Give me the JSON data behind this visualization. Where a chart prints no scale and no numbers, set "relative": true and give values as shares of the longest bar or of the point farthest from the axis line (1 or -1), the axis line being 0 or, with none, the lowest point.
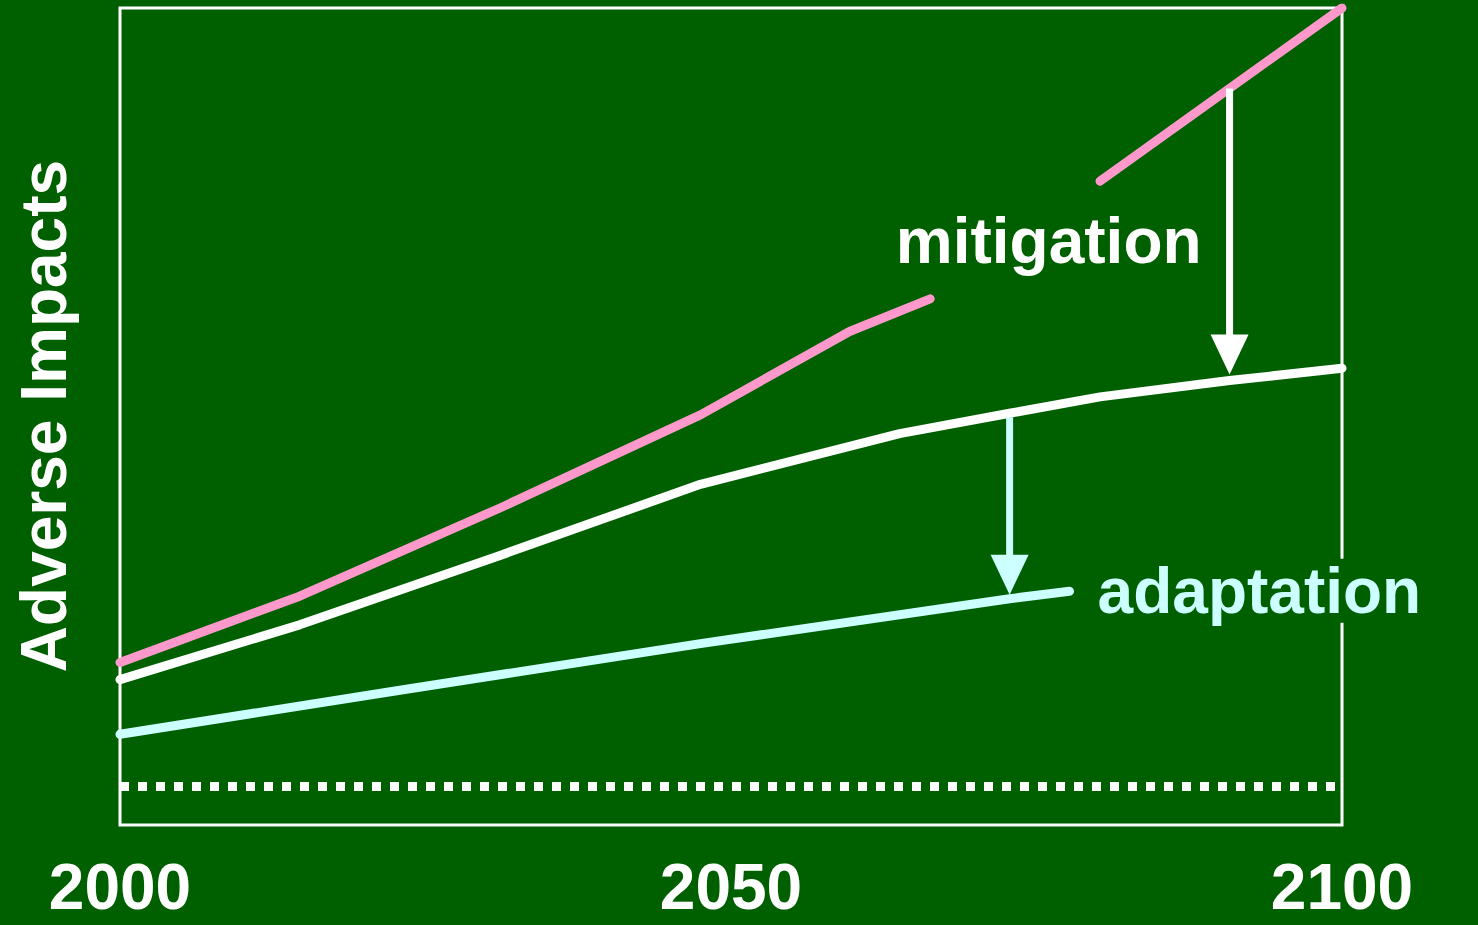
{
  "chart_data": {
    "type": "line",
    "relative": true,
    "ylabel": "Adverse Impacts",
    "xlim": [
      2000,
      2100
    ],
    "xticks": [
      2000,
      2050,
      2100
    ],
    "grid": false,
    "marker": "none",
    "annotations": [
      "mitigation",
      "adaptation"
    ],
    "series": [
      {
        "color": "#ff99cc",
        "x": [
          2000,
          2014.7,
          2031.1,
          2047.5,
          2059.7,
          2066.3,
          2073,
          2080.2,
          2090,
          2100
        ],
        "values": [
          0.199,
          0.28,
          0.388,
          0.502,
          0.604,
          0.644,
          null,
          0.788,
          0.893,
          1.0
        ]
      },
      {
        "color": "#ffffff",
        "x": [
          2000,
          2014.7,
          2031.1,
          2047.5,
          2063.8,
          2072.8,
          2080.2,
          2090.8,
          2100
        ],
        "values": [
          0.178,
          0.245,
          0.33,
          0.417,
          0.479,
          0.504,
          0.524,
          0.544,
          0.559
        ]
      },
      {
        "color": "#ccffff",
        "x": [
          2000,
          2022.9,
          2047.5,
          2072.8,
          2077.7
        ],
        "values": [
          0.111,
          0.165,
          0.222,
          0.277,
          0.286
        ]
      },
      {
        "color": "#ffffff",
        "line_style": "dotted",
        "x": [
          2000,
          2100
        ],
        "values": [
          0.047,
          0.047
        ]
      }
    ]
  }
}
